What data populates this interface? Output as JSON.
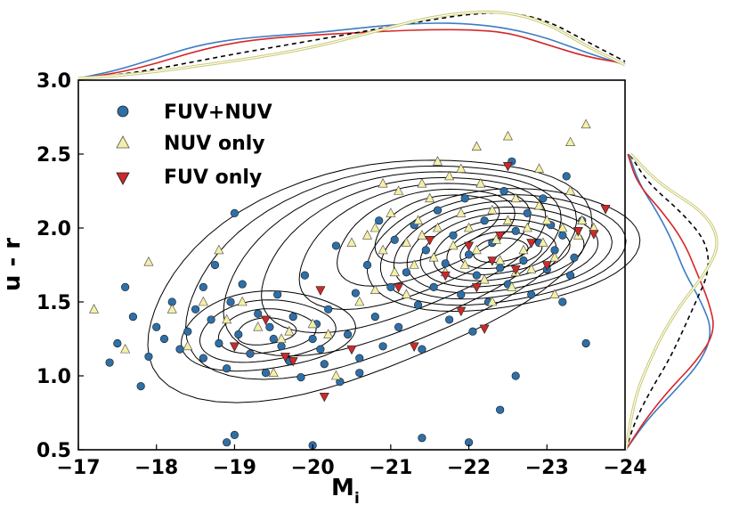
{
  "chart_data": {
    "type": "scatter",
    "xlabel": "M",
    "xlabel_sub": "i",
    "ylabel": "u - r",
    "xlim": [
      -17,
      -24
    ],
    "ylim": [
      0.5,
      3.0
    ],
    "x_ticks": [
      -17,
      -18,
      -19,
      -20,
      -21,
      -22,
      -23,
      -24
    ],
    "x_tick_labels": [
      "−17",
      "−18",
      "−19",
      "−20",
      "−21",
      "−22",
      "−23",
      "−24"
    ],
    "y_ticks": [
      0.5,
      1.0,
      1.5,
      2.0,
      2.5,
      3.0
    ],
    "y_tick_labels": [
      "0.5",
      "1.0",
      "1.5",
      "2.0",
      "2.5",
      "3.0"
    ],
    "legend_position": "top-left",
    "series": [
      {
        "name": "FUV+NUV",
        "marker": "circle",
        "color": "#2e6fa8",
        "points": [
          [
            -17.4,
            1.09
          ],
          [
            -17.5,
            1.22
          ],
          [
            -17.6,
            1.6
          ],
          [
            -17.7,
            1.4
          ],
          [
            -17.8,
            0.93
          ],
          [
            -17.9,
            1.13
          ],
          [
            -18.0,
            1.33
          ],
          [
            -18.1,
            1.25
          ],
          [
            -18.2,
            1.5
          ],
          [
            -18.3,
            1.18
          ],
          [
            -18.4,
            1.3
          ],
          [
            -18.5,
            1.45
          ],
          [
            -18.6,
            1.12
          ],
          [
            -18.7,
            1.38
          ],
          [
            -18.75,
            1.75
          ],
          [
            -18.8,
            1.22
          ],
          [
            -18.9,
            1.05
          ],
          [
            -18.95,
            1.5
          ],
          [
            -19.0,
            2.1
          ],
          [
            -19.05,
            1.28
          ],
          [
            -19.1,
            1.62
          ],
          [
            -19.2,
            1.15
          ],
          [
            -19.3,
            1.42
          ],
          [
            -19.4,
            1.02
          ],
          [
            -19.45,
            1.33
          ],
          [
            -19.55,
            1.55
          ],
          [
            -19.6,
            1.2
          ],
          [
            -19.7,
            1.1
          ],
          [
            -19.75,
            1.4
          ],
          [
            -19.85,
            0.99
          ],
          [
            -19.9,
            1.68
          ],
          [
            -20.0,
            1.25
          ],
          [
            -20.05,
            1.35
          ],
          [
            -20.15,
            1.08
          ],
          [
            -20.2,
            1.45
          ],
          [
            -20.3,
            1.88
          ],
          [
            -20.35,
            0.96
          ],
          [
            -20.45,
            1.28
          ],
          [
            -20.55,
            1.56
          ],
          [
            -20.6,
            1.12
          ],
          [
            -20.7,
            1.75
          ],
          [
            -20.8,
            1.4
          ],
          [
            -20.85,
            2.05
          ],
          [
            -20.9,
            1.2
          ],
          [
            -21.0,
            1.6
          ],
          [
            -21.05,
            1.92
          ],
          [
            -21.1,
            1.33
          ],
          [
            -21.2,
            1.7
          ],
          [
            -21.3,
            2.02
          ],
          [
            -21.35,
            1.48
          ],
          [
            -21.4,
            1.18
          ],
          [
            -21.45,
            1.85
          ],
          [
            -21.55,
            1.6
          ],
          [
            -21.6,
            2.12
          ],
          [
            -21.7,
            1.76
          ],
          [
            -21.75,
            1.38
          ],
          [
            -21.8,
            1.95
          ],
          [
            -21.9,
            1.55
          ],
          [
            -21.95,
            2.2
          ],
          [
            -22.0,
            1.82
          ],
          [
            -22.05,
            1.3
          ],
          [
            -22.1,
            1.68
          ],
          [
            -22.2,
            2.05
          ],
          [
            -22.25,
            1.5
          ],
          [
            -22.3,
            1.9
          ],
          [
            -22.4,
            1.73
          ],
          [
            -22.45,
            2.25
          ],
          [
            -22.5,
            1.62
          ],
          [
            -22.55,
            2.45
          ],
          [
            -22.6,
            1.98
          ],
          [
            -22.7,
            1.78
          ],
          [
            -22.75,
            2.1
          ],
          [
            -22.8,
            1.55
          ],
          [
            -22.9,
            1.9
          ],
          [
            -22.95,
            2.2
          ],
          [
            -23.0,
            1.72
          ],
          [
            -23.05,
            2.02
          ],
          [
            -23.1,
            1.85
          ],
          [
            -23.2,
            1.95
          ],
          [
            -23.25,
            2.35
          ],
          [
            -23.3,
            1.68
          ],
          [
            -23.35,
            1.8
          ],
          [
            -23.45,
            2.05
          ],
          [
            -23.5,
            1.22
          ],
          [
            -18.9,
            0.55
          ],
          [
            -19.0,
            0.6
          ],
          [
            -20.0,
            0.53
          ],
          [
            -21.4,
            0.58
          ],
          [
            -22.0,
            0.55
          ],
          [
            -22.4,
            0.77
          ],
          [
            -22.6,
            1.0
          ],
          [
            -23.2,
            1.5
          ],
          [
            -20.1,
            1.18
          ],
          [
            -19.5,
            1.25
          ],
          [
            -18.6,
            1.6
          ],
          [
            -20.6,
            1.02
          ]
        ]
      },
      {
        "name": "NUV only",
        "marker": "triangle-up",
        "color": "#f5f0a6",
        "points": [
          [
            -17.2,
            1.45
          ],
          [
            -17.6,
            1.18
          ],
          [
            -17.9,
            1.77
          ],
          [
            -18.2,
            1.45
          ],
          [
            -18.6,
            1.5
          ],
          [
            -18.8,
            1.85
          ],
          [
            -18.9,
            1.38
          ],
          [
            -19.1,
            1.5
          ],
          [
            -19.3,
            1.33
          ],
          [
            -19.6,
            1.25
          ],
          [
            -20.0,
            1.35
          ],
          [
            -20.3,
            1.0
          ],
          [
            -20.5,
            1.9
          ],
          [
            -20.7,
            1.95
          ],
          [
            -20.8,
            2.0
          ],
          [
            -20.9,
            1.85
          ],
          [
            -21.0,
            2.1
          ],
          [
            -21.05,
            1.7
          ],
          [
            -21.1,
            2.25
          ],
          [
            -21.2,
            1.9
          ],
          [
            -21.3,
            1.75
          ],
          [
            -21.35,
            2.05
          ],
          [
            -21.4,
            1.95
          ],
          [
            -21.5,
            2.2
          ],
          [
            -21.55,
            1.8
          ],
          [
            -21.6,
            2.0
          ],
          [
            -21.7,
            1.7
          ],
          [
            -21.75,
            2.35
          ],
          [
            -21.8,
            1.88
          ],
          [
            -21.9,
            2.1
          ],
          [
            -21.95,
            1.75
          ],
          [
            -22.0,
            2.0
          ],
          [
            -22.1,
            1.85
          ],
          [
            -22.15,
            2.3
          ],
          [
            -22.2,
            1.65
          ],
          [
            -22.3,
            2.12
          ],
          [
            -22.35,
            1.92
          ],
          [
            -22.4,
            1.78
          ],
          [
            -22.5,
            2.05
          ],
          [
            -22.55,
            1.6
          ],
          [
            -22.6,
            2.2
          ],
          [
            -22.7,
            1.85
          ],
          [
            -22.75,
            2.0
          ],
          [
            -22.8,
            1.72
          ],
          [
            -22.9,
            2.15
          ],
          [
            -22.95,
            1.9
          ],
          [
            -23.0,
            2.05
          ],
          [
            -23.1,
            1.8
          ],
          [
            -23.2,
            2.0
          ],
          [
            -23.3,
            2.25
          ],
          [
            -23.4,
            1.95
          ],
          [
            -23.5,
            2.7
          ],
          [
            -23.45,
            2.05
          ],
          [
            -23.3,
            2.58
          ],
          [
            -22.5,
            2.62
          ],
          [
            -22.1,
            2.55
          ],
          [
            -21.6,
            2.45
          ],
          [
            -20.8,
            1.58
          ],
          [
            -20.6,
            1.5
          ],
          [
            -19.7,
            1.3
          ],
          [
            -18.4,
            1.2
          ],
          [
            -19.5,
            1.02
          ],
          [
            -20.2,
            1.28
          ],
          [
            -21.2,
            1.55
          ],
          [
            -22.3,
            1.5
          ],
          [
            -23.1,
            1.55
          ],
          [
            -23.6,
            2.0
          ],
          [
            -22.9,
            2.4
          ],
          [
            -21.9,
            2.4
          ],
          [
            -21.4,
            2.3
          ],
          [
            -20.9,
            2.3
          ],
          [
            -22.6,
            1.7
          ]
        ]
      },
      {
        "name": "FUV only",
        "marker": "triangle-down",
        "color": "#cc2a2a",
        "points": [
          [
            -19.0,
            1.2
          ],
          [
            -19.4,
            1.38
          ],
          [
            -19.65,
            1.13
          ],
          [
            -19.75,
            1.1
          ],
          [
            -20.1,
            1.58
          ],
          [
            -20.15,
            0.86
          ],
          [
            -20.5,
            1.18
          ],
          [
            -21.1,
            1.6
          ],
          [
            -21.5,
            1.92
          ],
          [
            -21.7,
            1.68
          ],
          [
            -21.9,
            1.44
          ],
          [
            -22.1,
            1.6
          ],
          [
            -22.2,
            1.32
          ],
          [
            -22.3,
            1.78
          ],
          [
            -22.4,
            1.95
          ],
          [
            -22.5,
            2.42
          ],
          [
            -22.6,
            1.72
          ],
          [
            -22.8,
            1.9
          ],
          [
            -23.0,
            1.75
          ],
          [
            -23.4,
            1.98
          ],
          [
            -23.6,
            1.96
          ],
          [
            -23.75,
            2.13
          ],
          [
            -21.3,
            1.2
          ],
          [
            -22.0,
            1.88
          ]
        ]
      }
    ],
    "x_marginal": {
      "series": [
        {
          "name": "FUV+NUV",
          "color": "#3b7cc4",
          "x": [
            -17.0,
            -17.5,
            -18.0,
            -18.5,
            -19.0,
            -19.5,
            -20.0,
            -20.5,
            -21.0,
            -21.5,
            -22.0,
            -22.5,
            -23.0,
            -23.5,
            -24.0
          ],
          "values": [
            0.0,
            0.12,
            0.3,
            0.48,
            0.58,
            0.63,
            0.67,
            0.73,
            0.79,
            0.82,
            0.81,
            0.74,
            0.6,
            0.38,
            0.2
          ]
        },
        {
          "name": "FUV only",
          "color": "#d62728",
          "x": [
            -17.0,
            -17.5,
            -18.0,
            -18.5,
            -19.0,
            -19.5,
            -20.0,
            -20.5,
            -21.0,
            -21.5,
            -22.0,
            -22.5,
            -23.0,
            -23.5,
            -24.0
          ],
          "values": [
            0.0,
            0.08,
            0.22,
            0.4,
            0.53,
            0.6,
            0.64,
            0.67,
            0.7,
            0.72,
            0.72,
            0.68,
            0.5,
            0.32,
            0.22
          ]
        },
        {
          "name": "all",
          "color": "#000000",
          "dashed": true,
          "x": [
            -17.0,
            -17.5,
            -18.0,
            -18.5,
            -19.0,
            -19.5,
            -20.0,
            -20.5,
            -21.0,
            -21.5,
            -22.0,
            -22.5,
            -23.0,
            -23.5,
            -24.0
          ],
          "values": [
            0.0,
            0.05,
            0.14,
            0.25,
            0.36,
            0.46,
            0.56,
            0.66,
            0.77,
            0.86,
            0.95,
            0.98,
            0.86,
            0.55,
            0.25
          ]
        },
        {
          "name": "NUV only",
          "color": "#c8c870",
          "double": true,
          "x": [
            -17.0,
            -17.5,
            -18.0,
            -18.5,
            -19.0,
            -19.5,
            -20.0,
            -20.5,
            -21.0,
            -21.5,
            -22.0,
            -22.5,
            -23.0,
            -23.5,
            -24.0
          ],
          "values": [
            0.0,
            0.04,
            0.1,
            0.18,
            0.26,
            0.35,
            0.46,
            0.6,
            0.76,
            0.9,
            0.98,
            0.98,
            0.82,
            0.48,
            0.2
          ]
        }
      ]
    },
    "y_marginal": {
      "series": [
        {
          "name": "FUV+NUV",
          "color": "#3b7cc4",
          "y": [
            0.5,
            0.7,
            0.9,
            1.1,
            1.3,
            1.5,
            1.7,
            1.9,
            2.1,
            2.3,
            2.5
          ],
          "values": [
            0.0,
            0.22,
            0.52,
            0.8,
            0.92,
            0.8,
            0.62,
            0.5,
            0.34,
            0.14,
            0.03
          ]
        },
        {
          "name": "FUV only",
          "color": "#d62728",
          "y": [
            0.5,
            0.7,
            0.9,
            1.1,
            1.3,
            1.5,
            1.7,
            1.9,
            2.1,
            2.3,
            2.5
          ],
          "values": [
            0.0,
            0.2,
            0.45,
            0.75,
            0.95,
            0.88,
            0.75,
            0.62,
            0.4,
            0.12,
            0.02
          ]
        },
        {
          "name": "all",
          "color": "#000000",
          "dashed": true,
          "y": [
            0.5,
            0.7,
            0.9,
            1.1,
            1.3,
            1.5,
            1.7,
            1.9,
            2.1,
            2.3,
            2.5
          ],
          "values": [
            0.0,
            0.1,
            0.26,
            0.45,
            0.6,
            0.74,
            0.88,
            0.86,
            0.6,
            0.24,
            0.04
          ]
        },
        {
          "name": "NUV only",
          "color": "#c8c870",
          "double": true,
          "y": [
            0.5,
            0.7,
            0.9,
            1.1,
            1.3,
            1.5,
            1.7,
            1.9,
            2.1,
            2.3,
            2.5
          ],
          "values": [
            0.0,
            0.05,
            0.12,
            0.25,
            0.4,
            0.6,
            0.85,
            1.0,
            0.85,
            0.35,
            0.05
          ]
        }
      ]
    },
    "contours": {
      "color": "#000000",
      "level_count": 16
    }
  }
}
